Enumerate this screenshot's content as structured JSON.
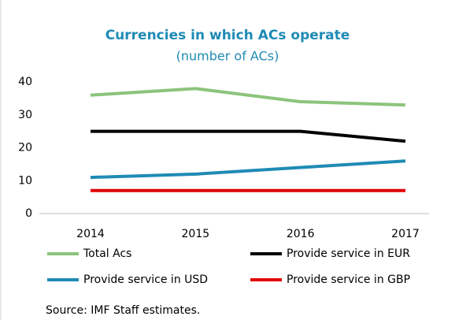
{
  "chart_data": {
    "type": "line",
    "title": "Currencies in which ACs operate",
    "subtitle": "(number of ACs)",
    "categories": [
      "2014",
      "2015",
      "2016",
      "2017"
    ],
    "series": [
      {
        "name": "Total Acs",
        "color": "#8cc47c",
        "values": [
          36,
          38,
          34,
          33
        ]
      },
      {
        "name": "Provide service in EUR",
        "color": "#000000",
        "values": [
          25,
          25,
          25,
          22
        ]
      },
      {
        "name": "Provide service in USD",
        "color": "#1f8bb5",
        "values": [
          11,
          12,
          14,
          16
        ]
      },
      {
        "name": "Provide service in GBP",
        "color": "#e00000",
        "values": [
          7,
          7,
          7,
          7
        ]
      }
    ],
    "ylim": [
      0,
      40
    ],
    "yticks": [
      0,
      10,
      20,
      30,
      40
    ],
    "grid": false,
    "source": "Source: IMF Staff estimates."
  }
}
